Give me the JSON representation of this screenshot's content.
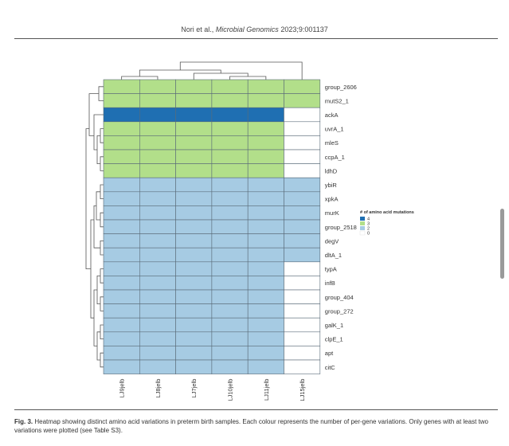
{
  "header": {
    "authors": "Nori et al.,",
    "journal": "Microbial Genomics",
    "citation": "2023;9:001137"
  },
  "caption": {
    "label": "Fig. 3.",
    "text": "Heatmap showing distinct amino acid variations in preterm birth samples. Each colour represents the number of per-gene variations. Only genes with at least two variations were plotted (see Table S3)."
  },
  "chart_data": {
    "type": "heatmap",
    "columns": [
      "LJ9jelb",
      "LJ8jelb",
      "LJ7jelb",
      "LJ10jelb",
      "LJ11jelb",
      "LJ15jelb"
    ],
    "rows": [
      "group_2606",
      "mutS2_1",
      "ackA",
      "uvrA_1",
      "mleS",
      "ccpA_1",
      "ldhD",
      "ybiR",
      "xpkA",
      "murK",
      "group_2518",
      "degV",
      "dltA_1",
      "typA",
      "infB",
      "group_404",
      "group_272",
      "galK_1",
      "clpE_1",
      "apt",
      "citC"
    ],
    "values": [
      [
        3,
        3,
        3,
        3,
        3,
        3
      ],
      [
        3,
        3,
        3,
        3,
        3,
        3
      ],
      [
        4,
        4,
        4,
        4,
        4,
        0
      ],
      [
        3,
        3,
        3,
        3,
        3,
        0
      ],
      [
        3,
        3,
        3,
        3,
        3,
        0
      ],
      [
        3,
        3,
        3,
        3,
        3,
        0
      ],
      [
        3,
        3,
        3,
        3,
        3,
        0
      ],
      [
        2,
        2,
        2,
        2,
        2,
        2
      ],
      [
        2,
        2,
        2,
        2,
        2,
        2
      ],
      [
        2,
        2,
        2,
        2,
        2,
        2
      ],
      [
        2,
        2,
        2,
        2,
        2,
        2
      ],
      [
        2,
        2,
        2,
        2,
        2,
        2
      ],
      [
        2,
        2,
        2,
        2,
        2,
        2
      ],
      [
        2,
        2,
        2,
        2,
        2,
        0
      ],
      [
        2,
        2,
        2,
        2,
        2,
        0
      ],
      [
        2,
        2,
        2,
        2,
        2,
        0
      ],
      [
        2,
        2,
        2,
        2,
        2,
        0
      ],
      [
        2,
        2,
        2,
        2,
        2,
        0
      ],
      [
        2,
        2,
        2,
        2,
        2,
        0
      ],
      [
        2,
        2,
        2,
        2,
        2,
        0
      ],
      [
        2,
        2,
        2,
        2,
        2,
        0
      ]
    ],
    "legend": {
      "title": "# of amino acid mutations",
      "entries": [
        {
          "label": "4",
          "value": 4,
          "color": "#1f6fb2"
        },
        {
          "label": "3",
          "value": 3,
          "color": "#b2df8a"
        },
        {
          "label": "2",
          "value": 2,
          "color": "#a6cbe3"
        },
        {
          "label": "0",
          "value": 0,
          "color": "#ffffff"
        }
      ],
      "placement": "right"
    },
    "column_dendrogram": true,
    "row_dendrogram": true
  }
}
